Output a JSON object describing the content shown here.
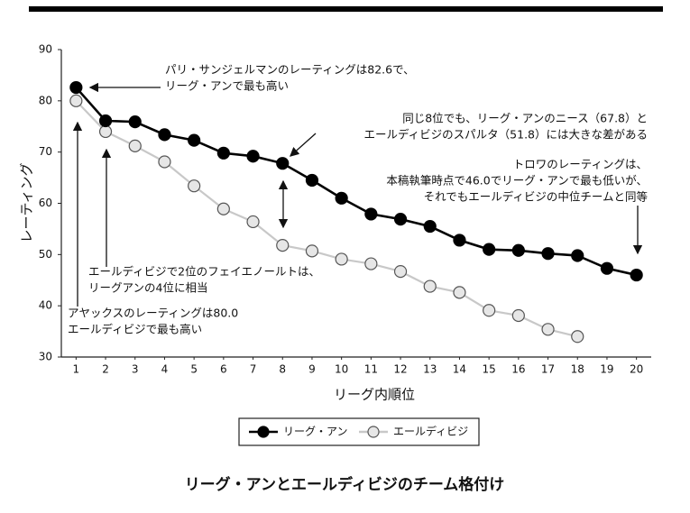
{
  "chart_data": {
    "type": "line",
    "title": "リーグ・アンとエールディビジのチーム格付け",
    "xlabel": "リーグ内順位",
    "ylabel": "レーティング",
    "x": [
      1,
      2,
      3,
      4,
      5,
      6,
      7,
      8,
      9,
      10,
      11,
      12,
      13,
      14,
      15,
      16,
      17,
      18,
      19,
      20
    ],
    "xlim": [
      0.5,
      20.5
    ],
    "xticks": [
      1,
      2,
      3,
      4,
      5,
      6,
      7,
      8,
      9,
      10,
      11,
      12,
      13,
      14,
      15,
      16,
      17,
      18,
      19,
      20
    ],
    "ylim": [
      30,
      90
    ],
    "yticks": [
      30,
      40,
      50,
      60,
      70,
      80,
      90
    ],
    "grid": false,
    "series": [
      {
        "name": "リーグ・アン",
        "color": "#000000",
        "values": [
          82.6,
          76.1,
          75.9,
          73.4,
          72.3,
          69.8,
          69.2,
          67.8,
          64.5,
          61.0,
          57.9,
          56.9,
          55.5,
          52.8,
          51.0,
          50.8,
          50.2,
          49.8,
          47.3,
          46.0
        ]
      },
      {
        "name": "エールディビジ",
        "color": "#c8c8c8",
        "values": [
          80.0,
          74.0,
          71.2,
          68.1,
          63.4,
          58.9,
          56.4,
          51.8,
          50.7,
          49.1,
          48.2,
          46.7,
          43.8,
          42.6,
          39.1,
          38.1,
          35.4,
          34.0,
          null,
          null
        ]
      }
    ],
    "legend": "bottom",
    "annotations": [
      {
        "lines": [
          "パリ・サンジェルマンのレーティングは82.6で、",
          "リーグ・アンで最も高い"
        ]
      },
      {
        "lines": [
          "同じ8位でも、リーグ・アンのニース（67.8）と",
          "エールディビジのスパルタ（51.8）には大きな差がある"
        ]
      },
      {
        "lines": [
          "トロワのレーティングは、",
          "本稿執筆時点で46.0でリーグ・アンで最も低いが、",
          "それでもエールディビジの中位チームと同等"
        ]
      },
      {
        "lines": [
          "エールディビジで2位のフェイエノールトは、",
          "リーグアンの4位に相当"
        ]
      },
      {
        "lines": [
          "アヤックスのレーティングは80.0",
          "エールディビジで最も高い"
        ]
      }
    ]
  }
}
